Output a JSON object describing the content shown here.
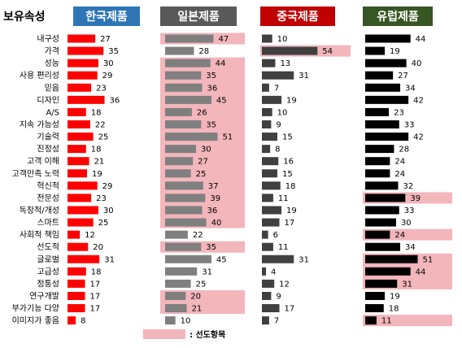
{
  "chart_data": {
    "type": "bar",
    "title": "보유속성",
    "legend": {
      "label": ": 선도항목",
      "color": "#f2b6bb"
    },
    "categories": [
      "내구성",
      "가격",
      "성능",
      "사용 편리성",
      "믿음",
      "디자인",
      "A/S",
      "지속 가능성",
      "기술력",
      "진정성",
      "고객 이해",
      "고객만족 노력",
      "혁신적",
      "전문성",
      "독창적/개성",
      "스마트",
      "사회적 책임",
      "선도적",
      "글로벌",
      "고급성",
      "정통성",
      "연구개발",
      "부가기능 다양",
      "이미지가 좋음"
    ],
    "series": [
      {
        "name": "한국제품",
        "header_color": "#2e75b6",
        "bar_color": "#ff0000",
        "values": [
          27,
          35,
          30,
          29,
          23,
          36,
          18,
          22,
          25,
          18,
          21,
          19,
          29,
          23,
          30,
          25,
          12,
          20,
          31,
          18,
          17,
          17,
          17,
          8
        ],
        "highlights": []
      },
      {
        "name": "일본제품",
        "header_color": "#595959",
        "bar_color": "#7f7f7f",
        "values": [
          47,
          28,
          44,
          35,
          36,
          45,
          26,
          35,
          51,
          30,
          27,
          25,
          37,
          39,
          36,
          40,
          22,
          35,
          45,
          31,
          25,
          20,
          21,
          10
        ],
        "highlights": [
          [
            0,
            0
          ],
          [
            2,
            15
          ],
          [
            17,
            17
          ],
          [
            21,
            22
          ]
        ]
      },
      {
        "name": "중국제품",
        "header_color": "#c00000",
        "bar_color": "#404040",
        "values": [
          10,
          54,
          13,
          31,
          7,
          19,
          10,
          9,
          15,
          8,
          16,
          15,
          18,
          11,
          19,
          17,
          6,
          11,
          31,
          4,
          12,
          9,
          17,
          7
        ],
        "highlights": [
          [
            1,
            1
          ]
        ]
      },
      {
        "name": "유럽제품",
        "header_color": "#375623",
        "bar_color": "#000000",
        "values": [
          44,
          19,
          40,
          27,
          34,
          42,
          23,
          33,
          42,
          28,
          24,
          24,
          32,
          39,
          33,
          30,
          24,
          34,
          51,
          44,
          31,
          19,
          18,
          11
        ],
        "highlights": [
          [
            13,
            13
          ],
          [
            16,
            16
          ],
          [
            18,
            20
          ],
          [
            23,
            23
          ]
        ]
      }
    ]
  }
}
